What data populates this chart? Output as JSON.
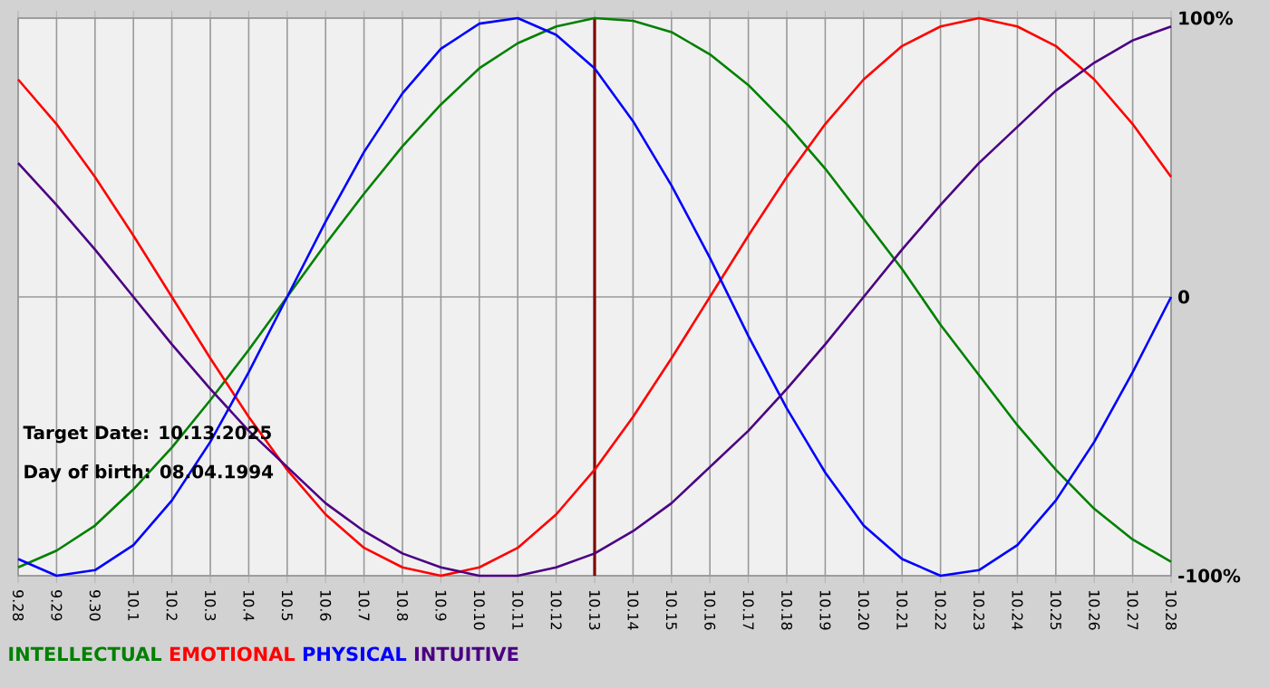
{
  "chart_data": {
    "type": "line",
    "categories": [
      "9.28",
      "9.29",
      "9.30",
      "10.1",
      "10.2",
      "10.3",
      "10.4",
      "10.5",
      "10.6",
      "10.7",
      "10.8",
      "10.9",
      "10.10",
      "10.11",
      "10.12",
      "10.13",
      "10.14",
      "10.15",
      "10.16",
      "10.17",
      "10.18",
      "10.19",
      "10.20",
      "10.21",
      "10.22",
      "10.23",
      "10.24",
      "10.25",
      "10.26",
      "10.27",
      "10.28"
    ],
    "series": [
      {
        "name": "INTELLECTUAL",
        "color": "#008000",
        "values": [
          -97,
          -91,
          -82,
          -69,
          -54,
          -37,
          -19,
          0,
          19,
          37,
          54,
          69,
          82,
          91,
          97,
          100,
          99,
          95,
          87,
          76,
          62,
          46,
          28,
          10,
          -10,
          -28,
          -46,
          -62,
          -76,
          -87,
          -95
        ]
      },
      {
        "name": "EMOTIONAL",
        "color": "#ff0000",
        "values": [
          78,
          62,
          43,
          22,
          0,
          -22,
          -43,
          -62,
          -78,
          -90,
          -97,
          -100,
          -97,
          -90,
          -78,
          -62,
          -43,
          -22,
          0,
          22,
          43,
          62,
          78,
          90,
          97,
          100,
          97,
          90,
          78,
          62,
          43
        ]
      },
      {
        "name": "PHYSICAL",
        "color": "#0000ff",
        "values": [
          -94,
          -100,
          -98,
          -89,
          -73,
          -52,
          -27,
          0,
          27,
          52,
          73,
          89,
          98,
          100,
          94,
          82,
          63,
          40,
          14,
          -14,
          -40,
          -63,
          -82,
          -94,
          -100,
          -98,
          -89,
          -73,
          -52,
          -27,
          0
        ]
      },
      {
        "name": "INTUITIVE",
        "color": "#4b0082",
        "values": [
          48,
          33,
          17,
          0,
          -17,
          -33,
          -48,
          -61,
          -74,
          -84,
          -92,
          -97,
          -100,
          -100,
          -97,
          -92,
          -84,
          -74,
          -61,
          -48,
          -33,
          -17,
          0,
          17,
          33,
          48,
          61,
          74,
          84,
          92,
          97
        ]
      }
    ],
    "ylim": [
      -100,
      100
    ],
    "yticks": [
      {
        "value": 100,
        "label": "100%"
      },
      0,
      {
        "value": -100,
        "label": "-100%"
      }
    ],
    "grid": true,
    "legend": "bottom left",
    "annotations": [
      "Target Date: 10.13.2025",
      "Day of birth: 08.04.1994"
    ],
    "ref_lines": [
      {
        "axis": "x",
        "value": "10.13",
        "color": "#800000"
      }
    ]
  }
}
